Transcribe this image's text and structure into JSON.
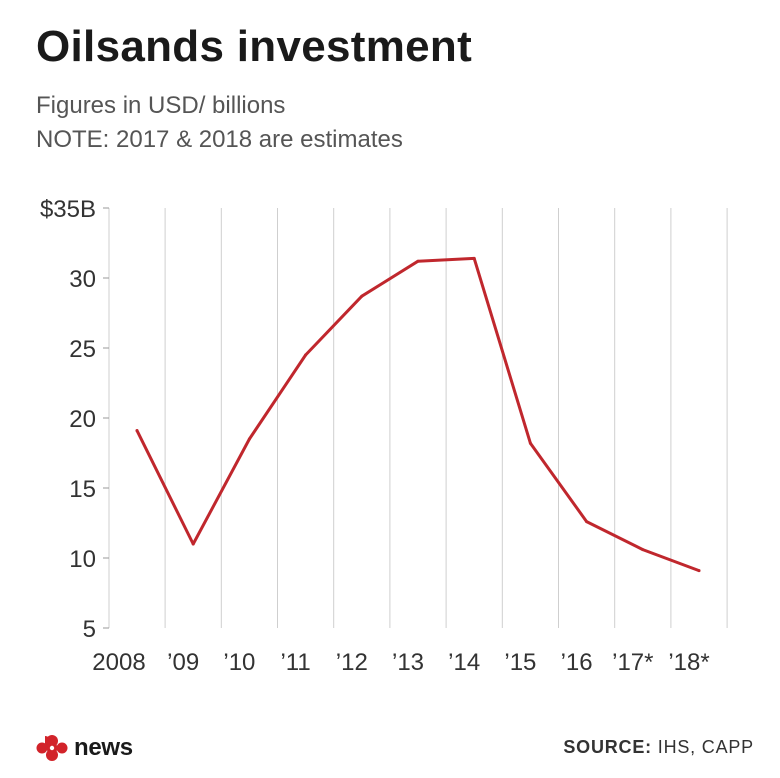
{
  "header": {
    "title": "Oilsands investment",
    "subtitle_line1": "Figures in USD/ billions",
    "subtitle_line2": "NOTE: 2017 & 2018 are estimates"
  },
  "chart_data": {
    "type": "line",
    "title": "Oilsands investment",
    "x": [
      "2008",
      "’09",
      "’10",
      "’11",
      "’12",
      "’13",
      "’14",
      "’15",
      "’16",
      "’17*",
      "’18*"
    ],
    "series": [
      {
        "values": [
          19.1,
          11.0,
          18.5,
          24.5,
          28.7,
          31.2,
          31.4,
          18.2,
          12.6,
          10.6,
          9.1
        ]
      }
    ],
    "ylim": [
      5,
      35
    ],
    "yticks": [
      5,
      10,
      15,
      20,
      25,
      30,
      35
    ],
    "ytick_labels": [
      "5",
      "10",
      "15",
      "20",
      "25",
      "30",
      "$35B"
    ],
    "line_color": "#c0272d",
    "grid": "vertical",
    "xlabel": "",
    "ylabel": ""
  },
  "footer": {
    "brand": "news",
    "source_label": "SOURCE:",
    "source_value": "IHS, CAPP"
  }
}
